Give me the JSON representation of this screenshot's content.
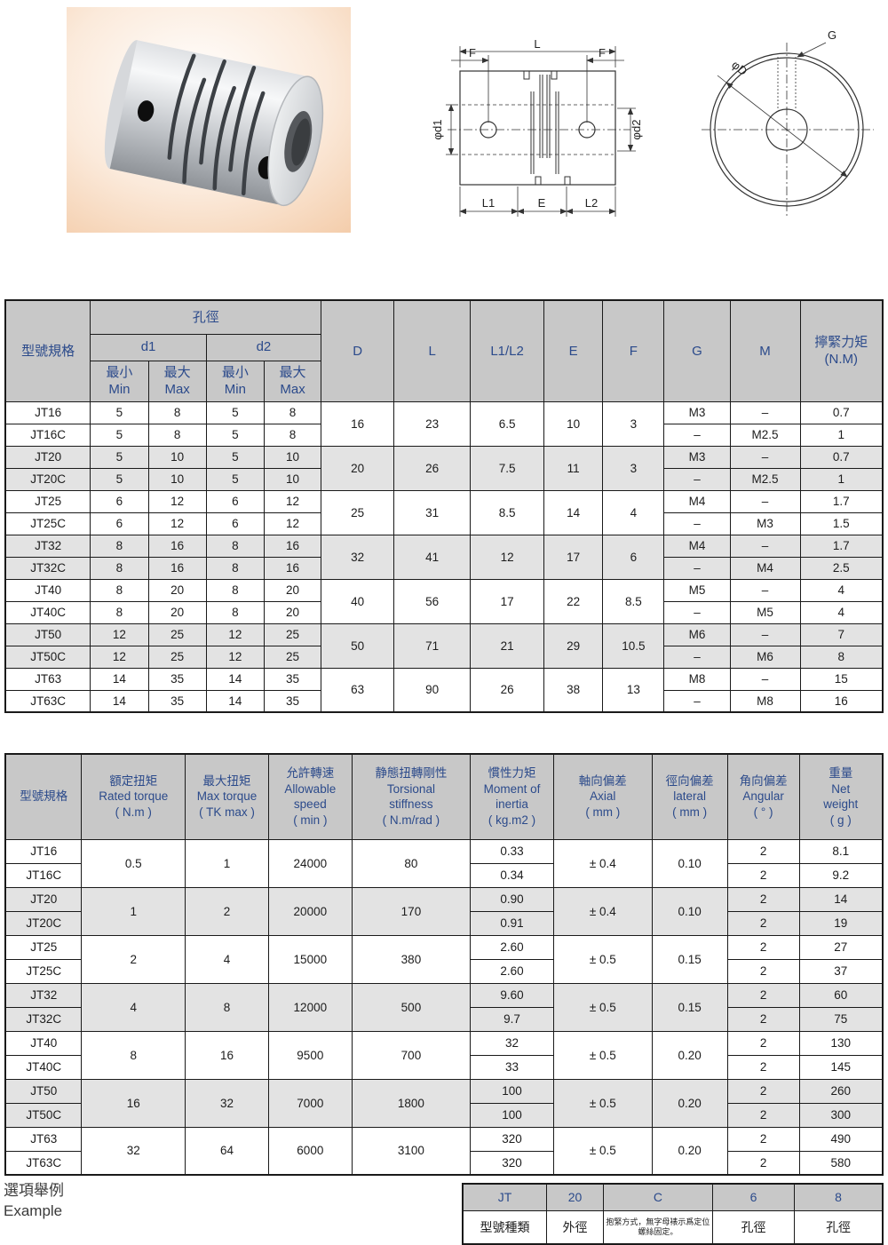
{
  "colors": {
    "header_bg": "#c8c8c8",
    "alt_row_bg": "#e3e3e3",
    "header_text": "#2b4a8b",
    "body_text": "#1c1c1c",
    "border": "#1a1a1a",
    "photo_bg": "#f6d2b4",
    "metal": "#c9ccd0"
  },
  "drawing": {
    "labels": {
      "L": "L",
      "F": "F",
      "L1": "L1",
      "E": "E",
      "L2": "L2",
      "d1": "φd1",
      "d2": "φd2",
      "G": "G",
      "D": "φD"
    }
  },
  "table1": {
    "header": {
      "model": "型號規格",
      "bore": "孔徑",
      "d1": "d1",
      "d2": "d2",
      "min": [
        "最小",
        "Min"
      ],
      "max": [
        "最大",
        "Max"
      ],
      "D": "D",
      "L": "L",
      "L1L2": "L1/L2",
      "E": "E",
      "F": "F",
      "G": "G",
      "M": "M",
      "torque": [
        "擰緊力矩",
        "(N.M)"
      ]
    },
    "pairs": [
      {
        "models": [
          "JT16",
          "JT16C"
        ],
        "d1": [
          [
            "5",
            "8"
          ],
          [
            "5",
            "8"
          ]
        ],
        "d2": [
          [
            "5",
            "8"
          ],
          [
            "5",
            "8"
          ]
        ],
        "D": "16",
        "L": "23",
        "L1L2": "6.5",
        "E": "10",
        "F": "3",
        "G": [
          "M3",
          "–"
        ],
        "M": [
          "–",
          "M2.5"
        ],
        "torque": [
          "0.7",
          "1"
        ]
      },
      {
        "models": [
          "JT20",
          "JT20C"
        ],
        "d1": [
          [
            "5",
            "10"
          ],
          [
            "5",
            "10"
          ]
        ],
        "d2": [
          [
            "5",
            "10"
          ],
          [
            "5",
            "10"
          ]
        ],
        "D": "20",
        "L": "26",
        "L1L2": "7.5",
        "E": "11",
        "F": "3",
        "G": [
          "M3",
          "–"
        ],
        "M": [
          "–",
          "M2.5"
        ],
        "torque": [
          "0.7",
          "1"
        ]
      },
      {
        "models": [
          "JT25",
          "JT25C"
        ],
        "d1": [
          [
            "6",
            "12"
          ],
          [
            "6",
            "12"
          ]
        ],
        "d2": [
          [
            "6",
            "12"
          ],
          [
            "6",
            "12"
          ]
        ],
        "D": "25",
        "L": "31",
        "L1L2": "8.5",
        "E": "14",
        "F": "4",
        "G": [
          "M4",
          "–"
        ],
        "M": [
          "–",
          "M3"
        ],
        "torque": [
          "1.7",
          "1.5"
        ]
      },
      {
        "models": [
          "JT32",
          "JT32C"
        ],
        "d1": [
          [
            "8",
            "16"
          ],
          [
            "8",
            "16"
          ]
        ],
        "d2": [
          [
            "8",
            "16"
          ],
          [
            "8",
            "16"
          ]
        ],
        "D": "32",
        "L": "41",
        "L1L2": "12",
        "E": "17",
        "F": "6",
        "G": [
          "M4",
          "–"
        ],
        "M": [
          "–",
          "M4"
        ],
        "torque": [
          "1.7",
          "2.5"
        ]
      },
      {
        "models": [
          "JT40",
          "JT40C"
        ],
        "d1": [
          [
            "8",
            "20"
          ],
          [
            "8",
            "20"
          ]
        ],
        "d2": [
          [
            "8",
            "20"
          ],
          [
            "8",
            "20"
          ]
        ],
        "D": "40",
        "L": "56",
        "L1L2": "17",
        "E": "22",
        "F": "8.5",
        "G": [
          "M5",
          "–"
        ],
        "M": [
          "–",
          "M5"
        ],
        "torque": [
          "4",
          "4"
        ]
      },
      {
        "models": [
          "JT50",
          "JT50C"
        ],
        "d1": [
          [
            "12",
            "25"
          ],
          [
            "12",
            "25"
          ]
        ],
        "d2": [
          [
            "12",
            "25"
          ],
          [
            "12",
            "25"
          ]
        ],
        "D": "50",
        "L": "71",
        "L1L2": "21",
        "E": "29",
        "F": "10.5",
        "G": [
          "M6",
          "–"
        ],
        "M": [
          "–",
          "M6"
        ],
        "torque": [
          "7",
          "8"
        ]
      },
      {
        "models": [
          "JT63",
          "JT63C"
        ],
        "d1": [
          [
            "14",
            "35"
          ],
          [
            "14",
            "35"
          ]
        ],
        "d2": [
          [
            "14",
            "35"
          ],
          [
            "14",
            "35"
          ]
        ],
        "D": "63",
        "L": "90",
        "L1L2": "26",
        "E": "38",
        "F": "13",
        "G": [
          "M8",
          "–"
        ],
        "M": [
          "–",
          "M8"
        ],
        "torque": [
          "15",
          "16"
        ]
      }
    ]
  },
  "table2": {
    "header": [
      {
        "lines": [
          "型號規格"
        ]
      },
      {
        "lines": [
          "額定扭矩",
          "Rated torque",
          "( N.m )"
        ]
      },
      {
        "lines": [
          "最大扭矩",
          "Max torque",
          "( TK max )"
        ]
      },
      {
        "lines": [
          "允許轉速",
          "Allowable",
          "speed",
          "( min )"
        ]
      },
      {
        "lines": [
          "静態扭轉剛性",
          "Torsional",
          "stiffness",
          "( N.m/rad )"
        ]
      },
      {
        "lines": [
          "慣性力矩",
          "Moment of",
          "inertia",
          "( kg.m2 )"
        ]
      },
      {
        "lines": [
          "軸向偏差",
          "Axial",
          "( mm )"
        ]
      },
      {
        "lines": [
          "徑向偏差",
          "lateral",
          "( mm )"
        ]
      },
      {
        "lines": [
          "角向偏差",
          "Angular",
          "( °   )"
        ]
      },
      {
        "lines": [
          "重量",
          "Net",
          "weight",
          "( g )"
        ]
      }
    ],
    "pairs": [
      {
        "models": [
          "JT16",
          "JT16C"
        ],
        "rated": "0.5",
        "max": "1",
        "speed": "24000",
        "stiffness": "80",
        "inertia": [
          "0.33",
          "0.34"
        ],
        "axial": "± 0.4",
        "lateral": "0.10",
        "angular": [
          "2",
          "2"
        ],
        "weight": [
          "8.1",
          "9.2"
        ]
      },
      {
        "models": [
          "JT20",
          "JT20C"
        ],
        "rated": "1",
        "max": "2",
        "speed": "20000",
        "stiffness": "170",
        "inertia": [
          "0.90",
          "0.91"
        ],
        "axial": "± 0.4",
        "lateral": "0.10",
        "angular": [
          "2",
          "2"
        ],
        "weight": [
          "14",
          "19"
        ]
      },
      {
        "models": [
          "JT25",
          "JT25C"
        ],
        "rated": "2",
        "max": "4",
        "speed": "15000",
        "stiffness": "380",
        "inertia": [
          "2.60",
          "2.60"
        ],
        "axial": "± 0.5",
        "lateral": "0.15",
        "angular": [
          "2",
          "2"
        ],
        "weight": [
          "27",
          "37"
        ]
      },
      {
        "models": [
          "JT32",
          "JT32C"
        ],
        "rated": "4",
        "max": "8",
        "speed": "12000",
        "stiffness": "500",
        "inertia": [
          "9.60",
          "9.7"
        ],
        "axial": "± 0.5",
        "lateral": "0.15",
        "angular": [
          "2",
          "2"
        ],
        "weight": [
          "60",
          "75"
        ]
      },
      {
        "models": [
          "JT40",
          "JT40C"
        ],
        "rated": "8",
        "max": "16",
        "speed": "9500",
        "stiffness": "700",
        "inertia": [
          "32",
          "33"
        ],
        "axial": "± 0.5",
        "lateral": "0.20",
        "angular": [
          "2",
          "2"
        ],
        "weight": [
          "130",
          "145"
        ]
      },
      {
        "models": [
          "JT50",
          "JT50C"
        ],
        "rated": "16",
        "max": "32",
        "speed": "7000",
        "stiffness": "1800",
        "inertia": [
          "100",
          "100"
        ],
        "axial": "± 0.5",
        "lateral": "0.20",
        "angular": [
          "2",
          "2"
        ],
        "weight": [
          "260",
          "300"
        ]
      },
      {
        "models": [
          "JT63",
          "JT63C"
        ],
        "rated": "32",
        "max": "64",
        "speed": "6000",
        "stiffness": "3100",
        "inertia": [
          "320",
          "320"
        ],
        "axial": "± 0.5",
        "lateral": "0.20",
        "angular": [
          "2",
          "2"
        ],
        "weight": [
          "490",
          "580"
        ]
      }
    ]
  },
  "example": {
    "label_zh": "選項舉例",
    "label_en": "Example",
    "codes": [
      "JT",
      "20",
      "C",
      "6",
      "8"
    ],
    "descs": [
      "型號種類",
      "外徑",
      "抱緊方式，無字母裱示爲定位螺絲固定。",
      "孔徑",
      "孔徑"
    ]
  }
}
